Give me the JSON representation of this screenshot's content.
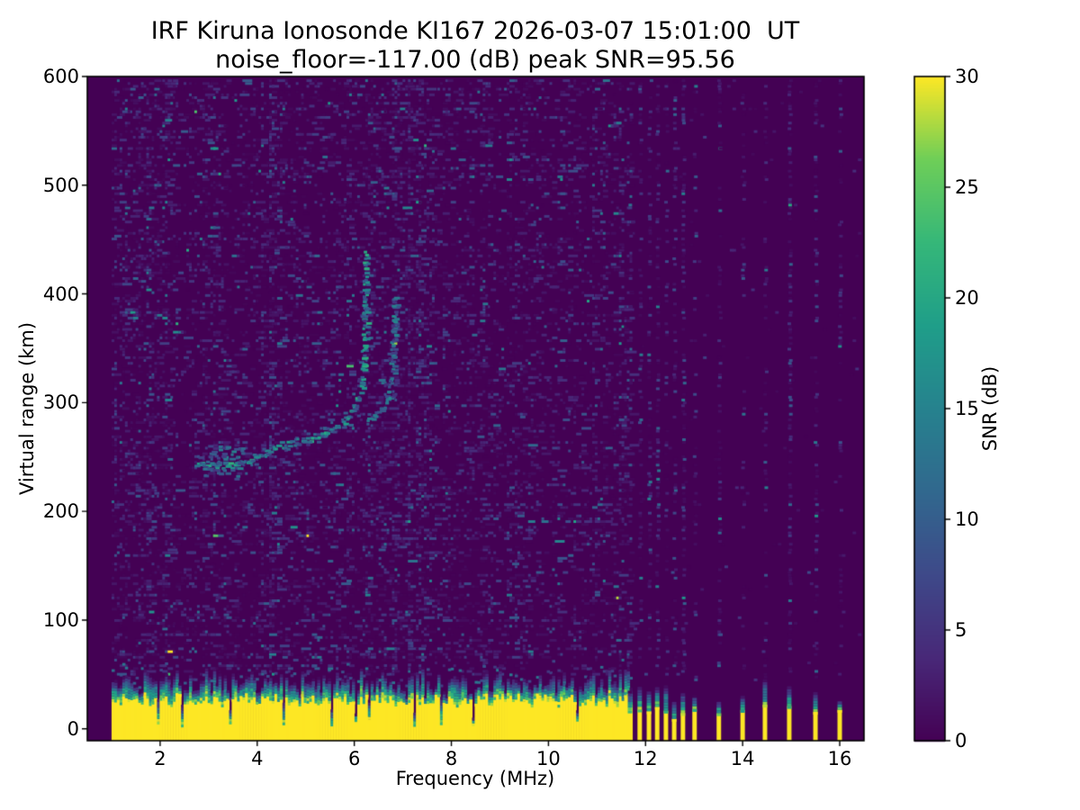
{
  "chart_data": {
    "type": "heatmap",
    "title": "IRF Kiruna Ionosonde KI167 2026-03-07 15:01:00  UT",
    "subtitle": "noise_floor=-117.00 (dB) peak SNR=95.56",
    "station": "IRF Kiruna Ionosonde KI167",
    "timestamp_ut": "2026-03-07 15:01:00",
    "noise_floor_db": -117.0,
    "peak_snr_db": 95.56,
    "xlabel": "Frequency (MHz)",
    "ylabel": "Virtual range (km)",
    "xlim": [
      0.5,
      16.5
    ],
    "ylim": [
      -11,
      600
    ],
    "xticks": [
      2,
      4,
      6,
      8,
      10,
      12,
      14,
      16
    ],
    "yticks": [
      0,
      100,
      200,
      300,
      400,
      500,
      600
    ],
    "grid": false,
    "legend": "none",
    "colorbar": {
      "label": "SNR (dB)",
      "range": [
        0,
        30
      ],
      "ticks": [
        0,
        5,
        10,
        15,
        20,
        25,
        30
      ],
      "colormap": "viridis"
    },
    "colormap_stops": [
      "#440154",
      "#482878",
      "#3e4989",
      "#31688e",
      "#26828e",
      "#1f9e89",
      "#35b779",
      "#6ece58",
      "#fde725"
    ],
    "sweep": {
      "start_mhz": 1.0,
      "continuous_end_mhz": 11.7,
      "discrete_freqs_mhz": [
        11.68,
        11.88,
        12.07,
        12.24,
        12.42,
        12.59,
        12.77,
        13.01,
        13.51,
        14.0,
        14.46,
        14.96,
        15.5,
        16.0
      ],
      "emphasized_columns_mhz": [
        12.07,
        12.77,
        13.51,
        14.96
      ]
    },
    "ground_echo_km": {
      "solid_top": 28,
      "fade_top": 42,
      "snr_db": 30
    },
    "o_trace": [
      [
        2.78,
        246
      ],
      [
        2.9,
        243
      ],
      [
        3.0,
        241
      ],
      [
        3.15,
        242
      ],
      [
        3.3,
        241
      ],
      [
        3.5,
        244
      ],
      [
        3.76,
        248
      ],
      [
        4.0,
        252
      ],
      [
        4.26,
        257
      ],
      [
        4.63,
        263
      ],
      [
        5.0,
        267
      ],
      [
        5.37,
        273
      ],
      [
        5.56,
        276
      ],
      [
        5.75,
        281
      ],
      [
        5.93,
        294
      ],
      [
        6.02,
        302
      ],
      [
        6.12,
        314
      ],
      [
        6.17,
        331
      ],
      [
        6.19,
        350
      ],
      [
        6.2,
        375
      ],
      [
        6.21,
        400
      ],
      [
        6.22,
        425
      ],
      [
        6.22,
        440
      ]
    ],
    "x_trace": [
      [
        6.22,
        282
      ],
      [
        6.4,
        288
      ],
      [
        6.55,
        295
      ],
      [
        6.68,
        307
      ],
      [
        6.75,
        325
      ],
      [
        6.78,
        350
      ],
      [
        6.8,
        375
      ],
      [
        6.82,
        400
      ]
    ],
    "trace_scatter_region": {
      "f_mhz": [
        2.7,
        3.7
      ],
      "range_km": [
        233,
        262
      ]
    },
    "noisy_bands_mhz": [
      [
        1.0,
        2.2
      ],
      [
        4.15,
        4.45
      ],
      [
        6.05,
        7.5
      ]
    ]
  }
}
